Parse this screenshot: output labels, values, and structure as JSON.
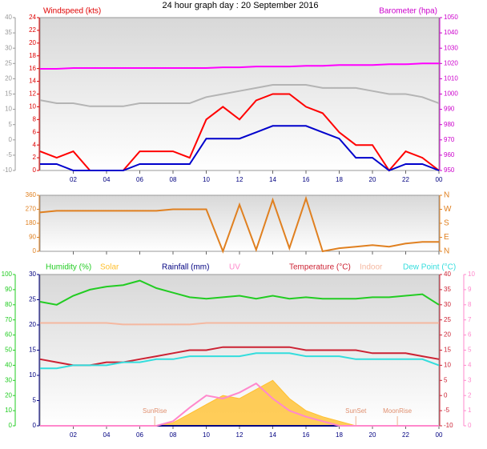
{
  "title": "24 hour graph day : 20 September 2016",
  "chart_data": [
    {
      "type": "line",
      "ylabel": "Windspeed (kts)",
      "y2label": "Barometer (hpa)",
      "x": [
        0,
        1,
        2,
        3,
        4,
        5,
        6,
        7,
        8,
        9,
        10,
        11,
        12,
        13,
        14,
        15,
        16,
        17,
        18,
        19,
        20,
        21,
        22,
        23,
        24
      ],
      "xlim": [
        0,
        24
      ],
      "xticks": [
        {
          "value": 2,
          "label": "02"
        },
        {
          "value": 4,
          "label": "04"
        },
        {
          "value": 6,
          "label": "06"
        },
        {
          "value": 8,
          "label": "08"
        },
        10,
        12,
        14,
        16,
        18,
        20,
        22,
        {
          "value": 24,
          "label": "00"
        }
      ],
      "ylim": [
        0,
        24
      ],
      "yticks": [
        0,
        2,
        4,
        6,
        8,
        10,
        12,
        14,
        16,
        18,
        20,
        22,
        24
      ],
      "y2lim": [
        950,
        1050
      ],
      "y2ticks": [
        950,
        960,
        970,
        980,
        990,
        1000,
        1010,
        1020,
        1030,
        1040,
        1050
      ],
      "y3lim": [
        -10,
        40
      ],
      "y3ticks": [
        -10,
        -5,
        0,
        5,
        10,
        15,
        20,
        25,
        30,
        35,
        40
      ],
      "series": [
        {
          "color": "#b4b4b4",
          "axis": "y3",
          "values": [
            13,
            12,
            12,
            11,
            11,
            11,
            12,
            12,
            12,
            12,
            14,
            15,
            16,
            17,
            18,
            18,
            18,
            17,
            17,
            17,
            16,
            15,
            15,
            14,
            12
          ]
        },
        {
          "color": "#ff00ff",
          "axis": "y2",
          "values": [
            1016.5,
            1016.5,
            1017,
            1017,
            1017,
            1017,
            1017,
            1017,
            1017,
            1017,
            1017,
            1017.5,
            1017.5,
            1018,
            1018,
            1018,
            1018.5,
            1018.5,
            1019,
            1019,
            1019,
            1019.5,
            1019.5,
            1020,
            1020
          ]
        },
        {
          "color": "#ff0000",
          "axis": "y",
          "values": [
            3,
            2,
            3,
            0,
            0,
            0,
            3,
            3,
            3,
            2,
            8,
            10,
            8,
            11,
            12,
            12,
            10,
            9,
            6,
            4,
            4,
            0,
            3,
            2,
            0
          ]
        },
        {
          "color": "#0000cc",
          "axis": "y",
          "values": [
            1,
            1,
            0,
            0,
            0,
            0,
            1,
            1,
            1,
            1,
            5,
            5,
            5,
            6,
            7,
            7,
            7,
            6,
            5,
            2,
            2,
            0,
            1,
            1,
            0
          ]
        }
      ]
    },
    {
      "type": "line",
      "x": [
        0,
        1,
        2,
        3,
        4,
        5,
        6,
        7,
        8,
        9,
        10,
        11,
        12,
        13,
        14,
        15,
        16,
        17,
        18,
        19,
        20,
        21,
        22,
        23,
        24
      ],
      "xlim": [
        0,
        24
      ],
      "xticks": [
        {
          "value": 2,
          "label": "02"
        },
        {
          "value": 4,
          "label": "04"
        },
        {
          "value": 6,
          "label": "06"
        },
        {
          "value": 8,
          "label": "08"
        },
        10,
        12,
        14,
        16,
        18,
        20,
        22,
        {
          "value": 24,
          "label": "00"
        }
      ],
      "ylim": [
        0,
        360
      ],
      "yticks": [
        0,
        90,
        180,
        270,
        360
      ],
      "y2lim": [
        0,
        360
      ],
      "y2ticks": [
        {
          "value": 0,
          "label": "N"
        },
        {
          "value": 90,
          "label": "E"
        },
        {
          "value": 180,
          "label": "S"
        },
        {
          "value": 270,
          "label": "W"
        },
        {
          "value": 360,
          "label": "N"
        }
      ],
      "series": [
        {
          "color": "#e08020",
          "axis": "y",
          "values": [
            250,
            260,
            260,
            260,
            260,
            260,
            260,
            260,
            270,
            270,
            270,
            0,
            300,
            10,
            330,
            20,
            340,
            0,
            20,
            30,
            40,
            30,
            50,
            60,
            60
          ]
        }
      ]
    },
    {
      "type": "line",
      "x": [
        0,
        1,
        2,
        3,
        4,
        5,
        6,
        7,
        8,
        9,
        10,
        11,
        12,
        13,
        14,
        15,
        16,
        17,
        18,
        19,
        20,
        21,
        22,
        23,
        24
      ],
      "xlim": [
        0,
        24
      ],
      "xticks": [
        {
          "value": 2,
          "label": "02"
        },
        {
          "value": 4,
          "label": "04"
        },
        {
          "value": 6,
          "label": "06"
        },
        {
          "value": 8,
          "label": "08"
        },
        10,
        12,
        14,
        16,
        18,
        20,
        22,
        {
          "value": 24,
          "label": "00"
        }
      ],
      "ylim": [
        0,
        100
      ],
      "yticks": [
        0,
        10,
        20,
        30,
        40,
        50,
        60,
        70,
        80,
        90,
        100
      ],
      "y2lim": [
        -10,
        40
      ],
      "y2ticks": [
        -10,
        -5,
        0,
        5,
        10,
        15,
        20,
        25,
        30,
        35,
        40
      ],
      "y3lim": [
        0,
        30
      ],
      "y3ticks": [
        0,
        5,
        10,
        15,
        20,
        25,
        30
      ],
      "y4lim": [
        0,
        10
      ],
      "y4ticks": [
        0,
        1,
        2,
        3,
        4,
        5,
        6,
        7,
        8,
        9,
        10
      ],
      "annotations": [
        {
          "text": "SunRise",
          "x": 6.9
        },
        {
          "text": "SunSet",
          "x": 19
        },
        {
          "text": "MoonRise",
          "x": 21.5
        }
      ],
      "series": [
        {
          "name": "Humidity (%)",
          "color": "#22cc22",
          "axis": "y",
          "values": [
            82,
            80,
            86,
            90,
            92,
            93,
            96,
            91,
            88,
            85,
            84,
            85,
            86,
            84,
            86,
            84,
            85,
            84,
            84,
            84,
            85,
            85,
            86,
            87,
            80
          ]
        },
        {
          "name": "Solar",
          "color": "#ffc030",
          "axis": "y",
          "kind": "area",
          "values": [
            0,
            0,
            0,
            0,
            0,
            0,
            0,
            0,
            2,
            8,
            14,
            20,
            18,
            24,
            30,
            18,
            10,
            6,
            3,
            0,
            0,
            0,
            0,
            0,
            0
          ]
        },
        {
          "name": "Rainfall (mm)",
          "color": "#000080",
          "axis": "y3",
          "values": [
            0,
            0,
            0,
            0,
            0,
            0,
            0,
            0,
            0,
            0,
            0,
            0,
            0,
            0,
            0,
            0,
            0,
            0,
            0,
            0,
            0,
            0,
            0,
            0,
            0
          ]
        },
        {
          "name": "UV",
          "color": "#ff88cc",
          "axis": "y4",
          "values": [
            0,
            0,
            0,
            0,
            0,
            0,
            0,
            0,
            0.3,
            1.2,
            2,
            1.8,
            2.2,
            2.8,
            1.8,
            1,
            0.6,
            0.3,
            0,
            0,
            0,
            0,
            0,
            0,
            0
          ]
        },
        {
          "name": "Temperature (°C)",
          "color": "#cc2233",
          "axis": "y2",
          "values": [
            12,
            11,
            10,
            10,
            11,
            11,
            12,
            13,
            14,
            15,
            15,
            16,
            16,
            16,
            16,
            16,
            15,
            15,
            15,
            15,
            14,
            14,
            14,
            13,
            12
          ]
        },
        {
          "name": "Indoor",
          "color": "#f5b8a0",
          "axis": "y2",
          "values": [
            24,
            24,
            24,
            24,
            24,
            23.5,
            23.5,
            23.5,
            23.5,
            23.5,
            24,
            24,
            24,
            24,
            24,
            24,
            24,
            24,
            24,
            24,
            24,
            24,
            24,
            24,
            24
          ]
        },
        {
          "name": "Dew Point (°C)",
          "color": "#33dddd",
          "axis": "y2",
          "values": [
            9,
            9,
            10,
            10,
            10,
            11,
            11,
            12,
            12,
            13,
            13,
            13,
            13,
            14,
            14,
            14,
            13,
            13,
            13,
            12,
            12,
            12,
            12,
            12,
            10
          ]
        }
      ]
    }
  ]
}
